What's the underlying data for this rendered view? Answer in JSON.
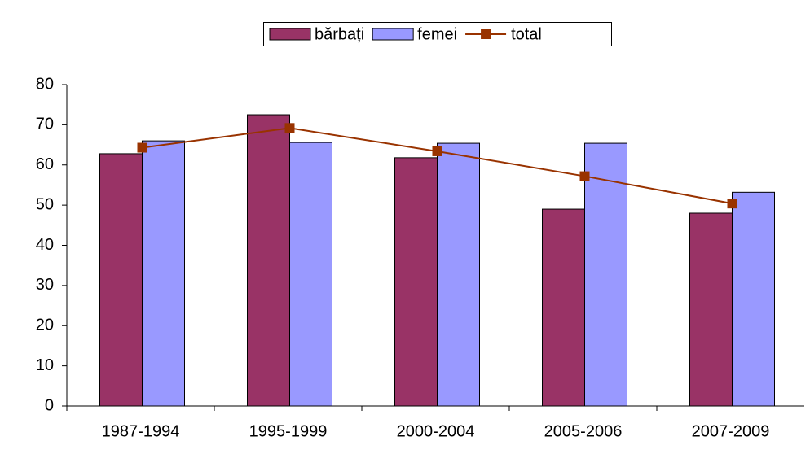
{
  "chart_data": {
    "type": "bar",
    "categories": [
      "1987-1994",
      "1995-1999",
      "2000-2004",
      "2005-2006",
      "2007-2009"
    ],
    "series": [
      {
        "name": "bărbați",
        "color": "#993366",
        "values": [
          62.8,
          72.5,
          61.8,
          49,
          48
        ]
      },
      {
        "name": "femei",
        "color": "#9999ff",
        "values": [
          66,
          65.6,
          65.4,
          65.4,
          53.2
        ]
      },
      {
        "name": "total",
        "color": "#993300",
        "type": "line",
        "values": [
          64.3,
          69.2,
          63.4,
          57.2,
          50.4
        ]
      }
    ],
    "ylim": [
      0,
      80
    ],
    "yticks": [
      0,
      10,
      20,
      30,
      40,
      50,
      60,
      70,
      80
    ],
    "grid": false,
    "legend": "top"
  }
}
